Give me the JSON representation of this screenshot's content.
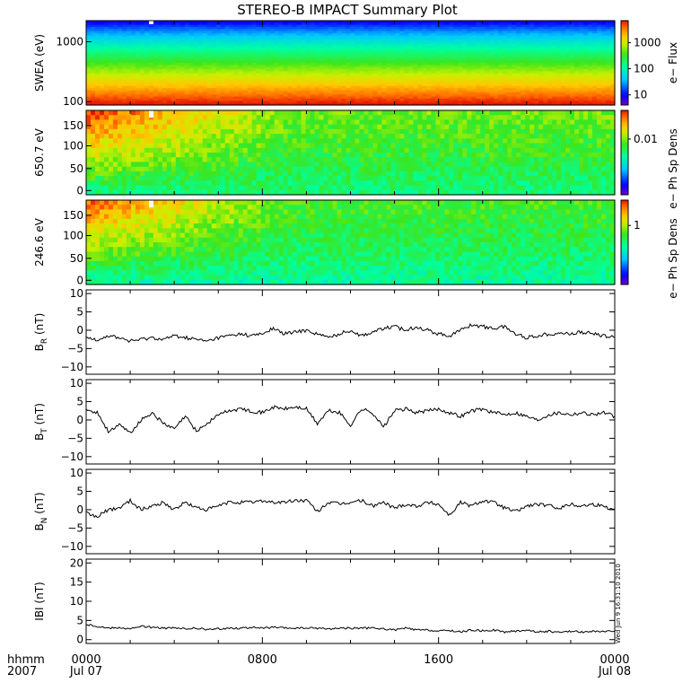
{
  "title": "STEREO-B IMPACT Summary Plot",
  "stamp": "Wed Jun  9 16:31:10 2010",
  "time_axis": {
    "corner_label_1": "hhmm",
    "corner_label_2": "2007",
    "ticks": [
      {
        "label": "0000",
        "sub": "Jul 07"
      },
      {
        "label": "0800",
        "sub": ""
      },
      {
        "label": "1600",
        "sub": ""
      },
      {
        "label": "0000",
        "sub": "Jul 08"
      }
    ]
  },
  "chart_data": [
    {
      "type": "heatmap",
      "ylabel": "SWEA (eV)",
      "yscale": "log",
      "ylim": [
        95,
        2000
      ],
      "yticks": [
        "1000",
        "100"
      ],
      "colorbar_label": "e− Flux",
      "colorbar_ticks": [
        "1000",
        "100",
        "10"
      ],
      "colorbar_scale": "log",
      "colorbar_range": [
        3,
        5000
      ],
      "description_energy_color_bands": [
        {
          "energy_eV": 100,
          "color_level": "red"
        },
        {
          "energy_eV": 200,
          "color_level": "orange"
        },
        {
          "energy_eV": 400,
          "color_level": "yellow-green"
        },
        {
          "energy_eV": 800,
          "color_level": "cyan"
        },
        {
          "energy_eV": 1500,
          "color_level": "blue"
        }
      ]
    },
    {
      "type": "heatmap",
      "ylabel": "650.7 eV",
      "ylim": [
        -5,
        180
      ],
      "yticks": [
        "150",
        "100",
        "50",
        "0"
      ],
      "colorbar_label": "e− Ph Sp Dens",
      "colorbar_ticks": [
        "0.01"
      ],
      "colorbar_scale": "log"
    },
    {
      "type": "heatmap",
      "ylabel": "246.6 eV",
      "ylim": [
        -5,
        180
      ],
      "yticks": [
        "150",
        "100",
        "50",
        "0"
      ],
      "colorbar_label": "e− Ph Sp Dens",
      "colorbar_ticks": [
        "1"
      ],
      "colorbar_scale": "log"
    },
    {
      "type": "line",
      "ylabel": "B",
      "ylabel_sub": "R",
      "ylabel_unit": " (nT)",
      "ylim": [
        -12,
        11
      ],
      "yticks": [
        "10",
        "5",
        "0",
        "−5",
        "−10"
      ],
      "x": [
        0,
        0.5,
        1,
        1.5,
        2,
        2.5,
        3,
        3.5,
        4,
        4.5,
        5,
        5.5,
        6,
        6.5,
        7,
        7.5,
        8,
        8.5,
        9,
        9.5,
        10,
        10.5,
        11,
        11.5,
        12,
        12.5,
        13,
        13.5,
        14,
        14.5,
        15,
        15.5,
        16,
        16.5,
        17,
        17.5,
        18,
        18.5,
        19,
        19.5,
        20,
        20.5,
        21,
        21.5,
        22,
        22.5,
        23,
        23.5,
        24
      ],
      "values": [
        -2,
        -2.5,
        -1.5,
        -2,
        -3,
        -2.5,
        -2,
        -2.5,
        -1.5,
        -2,
        -2.5,
        -3,
        -2,
        -1.5,
        -1,
        -1.5,
        -1,
        0.5,
        -1,
        -0.5,
        0,
        -1,
        -2,
        -1,
        0,
        -1.5,
        -0.5,
        0.5,
        1,
        0,
        1,
        0,
        -1,
        -1.5,
        0,
        1.5,
        1,
        0.5,
        1,
        -1,
        -2,
        -1.5,
        -1,
        -0.8,
        -1,
        -0.5,
        -1,
        -1.5,
        -2
      ]
    },
    {
      "type": "line",
      "ylabel": "B",
      "ylabel_sub": "T",
      "ylabel_unit": " (nT)",
      "ylim": [
        -12,
        11
      ],
      "yticks": [
        "10",
        "5",
        "0",
        "−5",
        "−10"
      ],
      "x": [
        0,
        0.5,
        1,
        1.5,
        2,
        2.5,
        3,
        3.5,
        4,
        4.5,
        5,
        5.5,
        6,
        6.5,
        7,
        7.5,
        8,
        8.5,
        9,
        9.5,
        10,
        10.5,
        11,
        11.5,
        12,
        12.5,
        13,
        13.5,
        14,
        14.5,
        15,
        15.5,
        16,
        16.5,
        17,
        17.5,
        18,
        18.5,
        19,
        19.5,
        20,
        20.5,
        21,
        21.5,
        22,
        22.5,
        23,
        23.5,
        24
      ],
      "values": [
        3,
        2,
        -3,
        -1.5,
        -3.5,
        0,
        2,
        -1,
        -2.5,
        1,
        -3,
        -1,
        1.5,
        2.5,
        3,
        2.5,
        2,
        3.5,
        3,
        3.5,
        3,
        -1,
        2.5,
        2,
        -1.5,
        3,
        2,
        -2,
        2.5,
        3,
        2,
        2.5,
        3,
        2,
        1,
        2.5,
        3,
        2,
        1.5,
        2,
        1,
        0,
        1.5,
        2,
        1.5,
        2,
        1.5,
        2,
        1
      ]
    },
    {
      "type": "line",
      "ylabel": "B",
      "ylabel_sub": "N",
      "ylabel_unit": " (nT)",
      "ylim": [
        -12,
        11
      ],
      "yticks": [
        "10",
        "5",
        "0",
        "−5",
        "−10"
      ],
      "x": [
        0,
        0.5,
        1,
        1.5,
        2,
        2.5,
        3,
        3.5,
        4,
        4.5,
        5,
        5.5,
        6,
        6.5,
        7,
        7.5,
        8,
        8.5,
        9,
        9.5,
        10,
        10.5,
        11,
        11.5,
        12,
        12.5,
        13,
        13.5,
        14,
        14.5,
        15,
        15.5,
        16,
        16.5,
        17,
        17.5,
        18,
        18.5,
        19,
        19.5,
        20,
        20.5,
        21,
        21.5,
        22,
        22.5,
        23,
        23.5,
        24
      ],
      "values": [
        -1,
        -2,
        0,
        0.5,
        2.5,
        0,
        1,
        2,
        0,
        2,
        0.5,
        0,
        1,
        2,
        2,
        2,
        2.5,
        2,
        2,
        2.5,
        2.5,
        -0.5,
        2,
        1.5,
        2,
        2.5,
        1,
        2,
        0.5,
        1.5,
        1,
        2,
        1.5,
        -1.5,
        2,
        1,
        2.5,
        2,
        0.5,
        -0.5,
        1,
        1.5,
        1,
        0.5,
        1.5,
        1,
        1.5,
        1,
        0
      ]
    },
    {
      "type": "line",
      "ylabel": "IBI (nT)",
      "ylim": [
        -1,
        21
      ],
      "yticks": [
        "20",
        "15",
        "10",
        "5",
        "0"
      ],
      "x": [
        0,
        0.5,
        1,
        1.5,
        2,
        2.5,
        3,
        3.5,
        4,
        4.5,
        5,
        5.5,
        6,
        6.5,
        7,
        7.5,
        8,
        8.5,
        9,
        9.5,
        10,
        10.5,
        11,
        11.5,
        12,
        12.5,
        13,
        13.5,
        14,
        14.5,
        15,
        15.5,
        16,
        16.5,
        17,
        17.5,
        18,
        18.5,
        19,
        19.5,
        20,
        20.5,
        21,
        21.5,
        22,
        22.5,
        23,
        23.5,
        24
      ],
      "values": [
        4,
        3.5,
        3,
        3.2,
        2.8,
        3.5,
        3.2,
        3,
        3,
        2.8,
        3,
        2.6,
        2.8,
        3,
        3,
        3.2,
        3,
        3.2,
        3,
        3,
        3,
        3,
        2.8,
        3,
        3,
        3,
        3,
        2.8,
        2.5,
        3,
        2.5,
        2.5,
        2.2,
        2.4,
        2,
        2.5,
        2.3,
        2.5,
        2,
        2.2,
        2.5,
        2,
        2.2,
        1.8,
        2.2,
        2,
        2.2,
        2,
        2.2
      ]
    }
  ]
}
